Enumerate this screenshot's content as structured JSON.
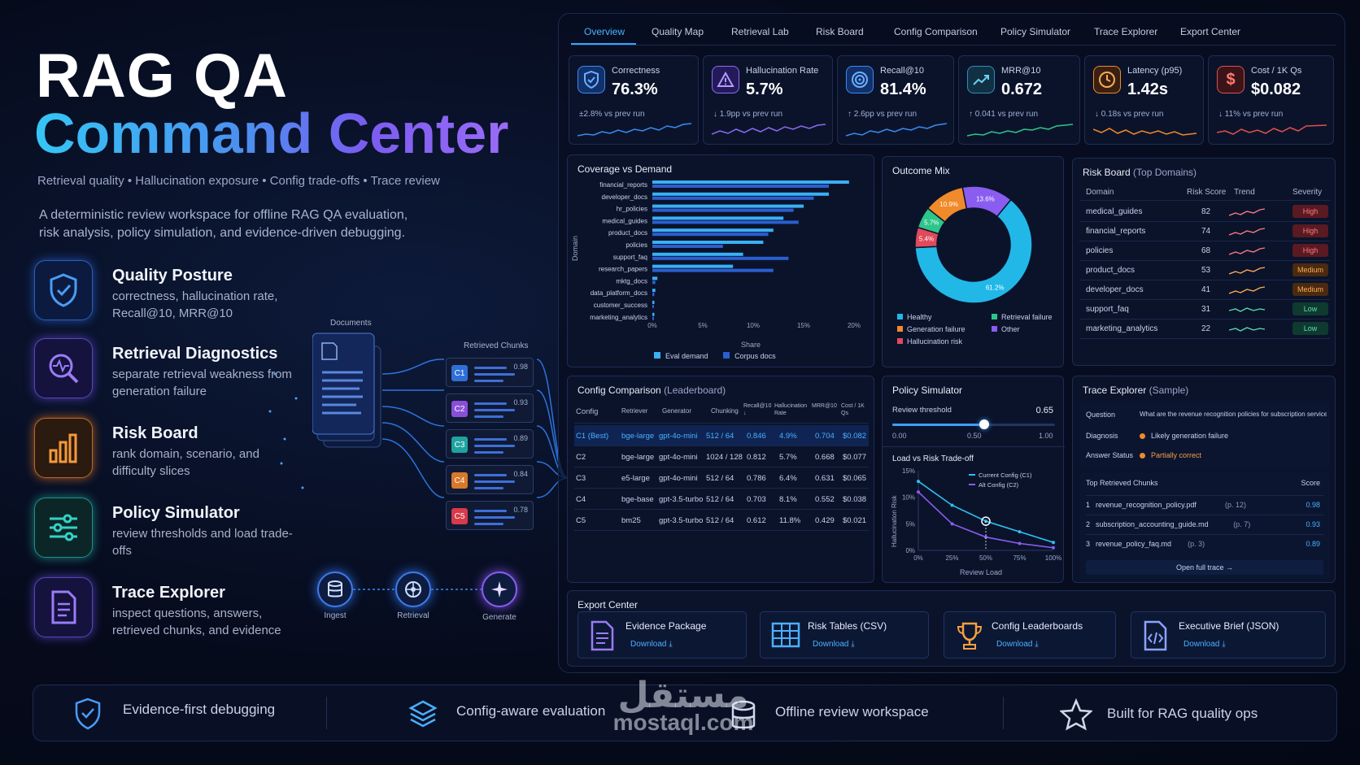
{
  "hero": {
    "title_line1": "RAG QA",
    "title_line2": "Command Center",
    "subtitle": "Retrieval quality  •  Hallucination exposure  •  Config trade-offs  •  Trace review",
    "description": "A deterministic review workspace for offline RAG QA evaluation, risk analysis, policy simulation, and evidence-driven debugging."
  },
  "features": [
    {
      "title": "Quality Posture",
      "desc": "correctness, hallucination rate, Recall@10, MRR@10",
      "icon": "shield-check-icon",
      "color": "#3a8cf0"
    },
    {
      "title": "Retrieval Diagnostics",
      "desc": "separate retrieval weakness from generation failure",
      "icon": "magnifier-pulse-icon",
      "color": "#8a6cf0"
    },
    {
      "title": "Risk Board",
      "desc": "rank domain, scenario, and difficulty slices",
      "icon": "bar-chart-icon",
      "color": "#f08a2a"
    },
    {
      "title": "Policy Simulator",
      "desc": "review thresholds and load trade-offs",
      "icon": "sliders-icon",
      "color": "#2ec5b8"
    },
    {
      "title": "Trace Explorer",
      "desc": "inspect questions, answers, retrieved chunks, and evidence",
      "icon": "document-icon",
      "color": "#8a6cf0"
    }
  ],
  "pipeline": {
    "documents_label": "Documents",
    "chunks_label": "Retrieved Chunks",
    "chunks": [
      {
        "id": "C1",
        "score": "0.98",
        "color": "#2f6fd8"
      },
      {
        "id": "C2",
        "score": "0.93",
        "color": "#8a4fd8"
      },
      {
        "id": "C3",
        "score": "0.89",
        "color": "#1fa3a0"
      },
      {
        "id": "C4",
        "score": "0.84",
        "color": "#d8782a"
      },
      {
        "id": "C5",
        "score": "0.78",
        "color": "#d83a4a"
      }
    ],
    "stages": [
      "Ingest",
      "Retrieval",
      "Generate"
    ]
  },
  "tabs": [
    "Overview",
    "Quality Map",
    "Retrieval Lab",
    "Risk Board",
    "Config Comparison",
    "Policy Simulator",
    "Trace Explorer",
    "Export Center"
  ],
  "kpis": [
    {
      "label": "Correctness",
      "value": "76.3%",
      "delta": "±2.8% vs prev run",
      "icon": "shield-check-icon",
      "color": "#3a8cf0"
    },
    {
      "label": "Hallucination Rate",
      "value": "5.7%",
      "delta": "↓ 1.9pp vs prev run",
      "icon": "warning-icon",
      "color": "#8a6cf0"
    },
    {
      "label": "Recall@10",
      "value": "81.4%",
      "delta": "↑ 2.6pp vs prev run",
      "icon": "target-icon",
      "color": "#3a8cf0"
    },
    {
      "label": "MRR@10",
      "value": "0.672",
      "delta": "↑ 0.041 vs prev run",
      "icon": "trend-up-icon",
      "color": "#2e8fb8"
    },
    {
      "label": "Latency (p95)",
      "value": "1.42s",
      "delta": "↓ 0.18s vs prev run",
      "icon": "clock-icon",
      "color": "#f08a2a"
    },
    {
      "label": "Cost / 1K Qs",
      "value": "$0.082",
      "delta": "↓ 11% vs prev run",
      "icon": "dollar-icon",
      "color": "#e0504a"
    }
  ],
  "coverage": {
    "title": "Coverage vs Demand",
    "ylabel": "Domain",
    "xlabel": "Share",
    "legend": [
      "Eval demand",
      "Corpus docs"
    ]
  },
  "outcome": {
    "title": "Outcome Mix",
    "legend": [
      "Healthy",
      "Retrieval failure",
      "Generation failure",
      "Other",
      "Hallucination risk"
    ]
  },
  "risk": {
    "title": "Risk Board",
    "title_sub": "(Top Domains)",
    "headers": [
      "Domain",
      "Risk Score",
      "Trend",
      "Severity"
    ],
    "rows": [
      {
        "domain": "medical_guides",
        "score": "82",
        "severity": "High"
      },
      {
        "domain": "financial_reports",
        "score": "74",
        "severity": "High"
      },
      {
        "domain": "policies",
        "score": "68",
        "severity": "High"
      },
      {
        "domain": "product_docs",
        "score": "53",
        "severity": "Medium"
      },
      {
        "domain": "developer_docs",
        "score": "41",
        "severity": "Medium"
      },
      {
        "domain": "support_faq",
        "score": "31",
        "severity": "Low"
      },
      {
        "domain": "marketing_analytics",
        "score": "22",
        "severity": "Low"
      }
    ]
  },
  "config": {
    "title": "Config Comparison",
    "title_sub": "(Leaderboard)",
    "headers": [
      "Config",
      "Retriever",
      "Generator",
      "Chunking",
      "Recall@10 ↓",
      "Hallucination Rate",
      "MRR@10",
      "Cost / 1K Qs"
    ],
    "rows": [
      {
        "config": "C1 (Best)",
        "retriever": "bge-large",
        "generator": "gpt-4o-mini",
        "chunking": "512 / 64",
        "recall": "0.846",
        "halluc": "4.9%",
        "mrr": "0.704",
        "cost": "$0.082"
      },
      {
        "config": "C2",
        "retriever": "bge-large",
        "generator": "gpt-4o-mini",
        "chunking": "1024 / 128",
        "recall": "0.812",
        "halluc": "5.7%",
        "mrr": "0.668",
        "cost": "$0.077"
      },
      {
        "config": "C3",
        "retriever": "e5-large",
        "generator": "gpt-4o-mini",
        "chunking": "512 / 64",
        "recall": "0.786",
        "halluc": "6.4%",
        "mrr": "0.631",
        "cost": "$0.065"
      },
      {
        "config": "C4",
        "retriever": "bge-base",
        "generator": "gpt-3.5-turbo",
        "chunking": "512 / 64",
        "recall": "0.703",
        "halluc": "8.1%",
        "mrr": "0.552",
        "cost": "$0.038"
      },
      {
        "config": "C5",
        "retriever": "bm25",
        "generator": "gpt-3.5-turbo",
        "chunking": "512 / 64",
        "recall": "0.612",
        "halluc": "11.8%",
        "mrr": "0.429",
        "cost": "$0.021"
      }
    ]
  },
  "policy": {
    "title": "Policy Simulator",
    "threshold_label": "Review threshold",
    "threshold_value": "0.65",
    "slider_ticks": [
      "0.00",
      "0.50",
      "1.00"
    ],
    "tradeoff_title": "Load vs Risk Trade-off",
    "ylabel": "Hallucination Risk",
    "xlabel": "Review Load",
    "legend": [
      "Current Config (C1)",
      "Alt Config (C2)"
    ]
  },
  "trace": {
    "title": "Trace Explorer",
    "title_sub": "(Sample)",
    "question_label": "Question",
    "question": "What are the revenue recognition policies for subscription services?",
    "diagnosis_label": "Diagnosis",
    "diagnosis": "Likely generation failure",
    "status_label": "Answer Status",
    "status": "Partially correct",
    "chunks_label": "Top Retrieved Chunks",
    "score_label": "Score",
    "chunks": [
      {
        "n": "1",
        "file": "revenue_recognition_policy.pdf",
        "page": "(p. 12)",
        "score": "0.98"
      },
      {
        "n": "2",
        "file": "subscription_accounting_guide.md",
        "page": "(p. 7)",
        "score": "0.93"
      },
      {
        "n": "3",
        "file": "revenue_policy_faq.md",
        "page": "(p. 3)",
        "score": "0.89"
      }
    ],
    "open_label": "Open full trace →"
  },
  "export": {
    "title": "Export Center",
    "items": [
      {
        "label": "Evidence Package",
        "action": "Download ⤓"
      },
      {
        "label": "Risk Tables (CSV)",
        "action": "Download ⤓"
      },
      {
        "label": "Config Leaderboards",
        "action": "Download ⤓"
      },
      {
        "label": "Executive Brief (JSON)",
        "action": "Download ⤓"
      }
    ]
  },
  "footer": [
    "Evidence-first debugging",
    "Config-aware evaluation",
    "Offline review workspace",
    "Built for RAG quality ops"
  ],
  "watermark": {
    "arabic": "مستقل",
    "latin": "mostaql.com"
  },
  "chart_data": [
    {
      "type": "bar",
      "title": "Coverage vs Demand",
      "xlabel": "Share",
      "ylabel": "Domain",
      "xlim": [
        0,
        20
      ],
      "categories": [
        "financial_reports",
        "developer_docs",
        "hr_policies",
        "medical_guides",
        "product_docs",
        "policies",
        "support_faq",
        "research_papers",
        "mktg_docs",
        "data_platform_docs",
        "customer_success",
        "marketing_analytics"
      ],
      "series": [
        {
          "name": "Eval demand",
          "values": [
            19.5,
            17.5,
            15,
            13,
            12,
            11,
            9,
            8,
            0.5,
            0.3,
            0.2,
            0.2
          ]
        },
        {
          "name": "Corpus docs",
          "values": [
            17.5,
            16,
            14,
            14.5,
            11.5,
            7,
            13.5,
            12,
            0.3,
            0.2,
            0.1,
            0.1
          ]
        }
      ]
    },
    {
      "type": "pie",
      "title": "Outcome Mix",
      "categories": [
        "Healthy",
        "Hallucination risk",
        "Retrieval failure",
        "Generation failure",
        "Other"
      ],
      "values": [
        61.2,
        5.4,
        5.7,
        10.9,
        13.6
      ],
      "colors": [
        "#21b8e8",
        "#e04a5a",
        "#2ec58a",
        "#f08a2a",
        "#8a5cf0"
      ]
    },
    {
      "type": "line",
      "title": "Load vs Risk Trade-off",
      "xlabel": "Review Load",
      "ylabel": "Hallucination Risk",
      "x": [
        0,
        25,
        50,
        75,
        100
      ],
      "series": [
        {
          "name": "Current Config (C1)",
          "values": [
            13,
            8.5,
            5.5,
            3.5,
            1.5
          ]
        },
        {
          "name": "Alt Config (C2)",
          "values": [
            11,
            5,
            2.5,
            1.3,
            0.5
          ]
        }
      ],
      "ylim": [
        0,
        15
      ],
      "xtick_labels": [
        "0%",
        "25%",
        "50%",
        "75%",
        "100%"
      ],
      "ytick_labels": [
        "0%",
        "5%",
        "10%",
        "15%"
      ]
    }
  ]
}
